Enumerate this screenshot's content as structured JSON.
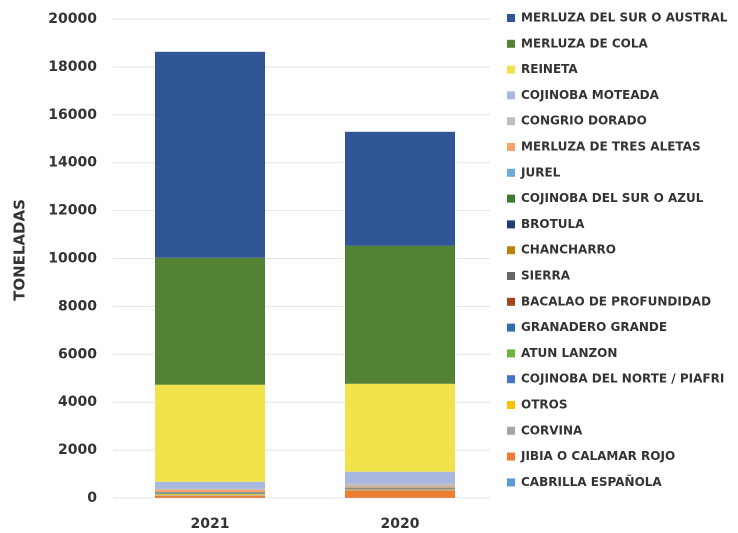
{
  "chart_data": {
    "type": "stacked_bar",
    "y_label": "TONELADAS",
    "categories": [
      "2021",
      "2020"
    ],
    "ylim": [
      0,
      20000
    ],
    "yticks": [
      0,
      2000,
      4000,
      6000,
      8000,
      10000,
      12000,
      14000,
      16000,
      18000,
      20000
    ],
    "grid": true,
    "legend": "right",
    "series": [
      {
        "name": "MERLUZA DEL SUR O AUSTRAL",
        "color": "#2f5597",
        "values": [
          8600,
          4760
        ]
      },
      {
        "name": "MERLUZA DE COLA",
        "color": "#548235",
        "values": [
          5300,
          5760
        ]
      },
      {
        "name": "REINETA",
        "color": "#f2e34c",
        "values": [
          4050,
          3670
        ]
      },
      {
        "name": "COJINOBA MOTEADA",
        "color": "#a9b8e0",
        "values": [
          300,
          500
        ]
      },
      {
        "name": "CONGRIO DORADO",
        "color": "#bfbfbf",
        "values": [
          30,
          120
        ]
      },
      {
        "name": "MERLUZA DE TRES ALETAS",
        "color": "#f4a46a",
        "values": [
          100,
          40
        ]
      },
      {
        "name": "JUREL",
        "color": "#6fa8dc",
        "values": [
          10,
          10
        ]
      },
      {
        "name": "COJINOBA DEL SUR O AZUL",
        "color": "#3b7a2a",
        "values": [
          10,
          10
        ]
      },
      {
        "name": "BROTULA",
        "color": "#1f3c78",
        "values": [
          10,
          10
        ]
      },
      {
        "name": "CHANCHARRO",
        "color": "#b8860b",
        "values": [
          10,
          10
        ]
      },
      {
        "name": "SIERRA",
        "color": "#666666",
        "values": [
          10,
          10
        ]
      },
      {
        "name": "BACALAO DE PROFUNDIDAD",
        "color": "#a0461a",
        "values": [
          10,
          10
        ]
      },
      {
        "name": "GRANADERO GRANDE",
        "color": "#2e6db0",
        "values": [
          10,
          10
        ]
      },
      {
        "name": "ATUN LANZON",
        "color": "#6db33f",
        "values": [
          10,
          10
        ]
      },
      {
        "name": "COJINOBA DEL NORTE / PIAFRI",
        "color": "#4472c4",
        "values": [
          10,
          10
        ]
      },
      {
        "name": "OTROS",
        "color": "#ffc000",
        "values": [
          40,
          20
        ]
      },
      {
        "name": "CORVINA",
        "color": "#a5a5a5",
        "values": [
          30,
          20
        ]
      },
      {
        "name": "JIBIA O CALAMAR ROJO",
        "color": "#ed7d31",
        "values": [
          80,
          300
        ]
      },
      {
        "name": "CABRILLA ESPAÑOLA",
        "color": "#5b9bd5",
        "values": [
          10,
          10
        ]
      }
    ]
  }
}
